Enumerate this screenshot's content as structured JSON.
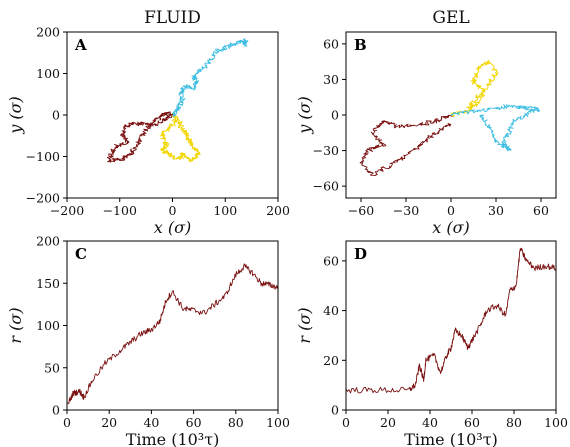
{
  "chart_data": [
    {
      "id": "A",
      "type": "line",
      "title": "FLUID",
      "panel_label": "A",
      "xlabel": "x (σ)",
      "ylabel": "y (σ)",
      "xlim": [
        -200,
        200
      ],
      "ylim": [
        -200,
        200
      ],
      "xticks": [
        -200,
        -100,
        0,
        100,
        200
      ],
      "yticks": [
        -200,
        -100,
        0,
        100,
        200
      ],
      "series": [
        {
          "color": "#7a1010",
          "points": [
            [
              0,
              0
            ],
            [
              -15,
              -10
            ],
            [
              -35,
              -25
            ],
            [
              -55,
              -22
            ],
            [
              -75,
              -20
            ],
            [
              -90,
              -30
            ],
            [
              -95,
              -50
            ],
            [
              -85,
              -65
            ],
            [
              -105,
              -75
            ],
            [
              -115,
              -90
            ],
            [
              -120,
              -110
            ],
            [
              -95,
              -105
            ],
            [
              -80,
              -95
            ],
            [
              -70,
              -75
            ],
            [
              -60,
              -55
            ],
            [
              -50,
              -35
            ],
            [
              -35,
              -15
            ],
            [
              -20,
              0
            ],
            [
              -5,
              5
            ]
          ]
        },
        {
          "color": "#f2d600",
          "points": [
            [
              0,
              0
            ],
            [
              5,
              -15
            ],
            [
              -5,
              -30
            ],
            [
              -20,
              -50
            ],
            [
              -10,
              -70
            ],
            [
              -20,
              -85
            ],
            [
              -5,
              -95
            ],
            [
              10,
              -105
            ],
            [
              20,
              -95
            ],
            [
              35,
              -110
            ],
            [
              50,
              -95
            ],
            [
              40,
              -75
            ],
            [
              30,
              -60
            ],
            [
              25,
              -45
            ],
            [
              15,
              -25
            ],
            [
              10,
              -5
            ]
          ]
        },
        {
          "color": "#3bbde2",
          "points": [
            [
              0,
              0
            ],
            [
              10,
              15
            ],
            [
              20,
              35
            ],
            [
              15,
              55
            ],
            [
              25,
              70
            ],
            [
              40,
              65
            ],
            [
              45,
              80
            ],
            [
              40,
              95
            ],
            [
              55,
              110
            ],
            [
              70,
              130
            ],
            [
              85,
              155
            ],
            [
              105,
              165
            ],
            [
              125,
              175
            ],
            [
              140,
              180
            ],
            [
              135,
              165
            ]
          ]
        }
      ]
    },
    {
      "id": "B",
      "type": "line",
      "title": "GEL",
      "panel_label": "B",
      "xlabel": "x (σ)",
      "ylabel": "y (σ)",
      "xlim": [
        -70,
        70
      ],
      "ylim": [
        -70,
        70
      ],
      "xticks": [
        -60,
        -30,
        0,
        30,
        60
      ],
      "yticks": [
        -60,
        -30,
        0,
        30,
        60
      ],
      "series": [
        {
          "color": "#7a1010",
          "points": [
            [
              0,
              0
            ],
            [
              -10,
              -5
            ],
            [
              -20,
              -8
            ],
            [
              -35,
              -10
            ],
            [
              -45,
              -5
            ],
            [
              -52,
              -15
            ],
            [
              -45,
              -25
            ],
            [
              -55,
              -30
            ],
            [
              -60,
              -40
            ],
            [
              -52,
              -50
            ],
            [
              -40,
              -42
            ],
            [
              -30,
              -35
            ],
            [
              -20,
              -25
            ],
            [
              -10,
              -15
            ],
            [
              0,
              -8
            ]
          ]
        },
        {
          "color": "#f2d600",
          "points": [
            [
              0,
              0
            ],
            [
              10,
              3
            ],
            [
              15,
              12
            ],
            [
              22,
              20
            ],
            [
              15,
              28
            ],
            [
              18,
              38
            ],
            [
              25,
              45
            ],
            [
              30,
              35
            ],
            [
              24,
              25
            ],
            [
              18,
              10
            ],
            [
              12,
              5
            ]
          ]
        },
        {
          "color": "#3bbde2",
          "points": [
            [
              0,
              0
            ],
            [
              15,
              3
            ],
            [
              28,
              5
            ],
            [
              38,
              8
            ],
            [
              48,
              6
            ],
            [
              58,
              5
            ],
            [
              50,
              0
            ],
            [
              42,
              -5
            ],
            [
              38,
              -15
            ],
            [
              35,
              -25
            ],
            [
              40,
              -30
            ],
            [
              30,
              -22
            ],
            [
              25,
              -10
            ],
            [
              20,
              0
            ]
          ]
        }
      ]
    },
    {
      "id": "C",
      "type": "line",
      "panel_label": "C",
      "xlabel": "Time (10³τ)",
      "ylabel": "r (σ)",
      "xlim": [
        0,
        100
      ],
      "ylim": [
        0,
        200
      ],
      "xticks": [
        0,
        20,
        40,
        60,
        80,
        100
      ],
      "yticks": [
        0,
        50,
        100,
        150,
        200
      ],
      "series": [
        {
          "color": "#7a1010",
          "points": [
            [
              0,
              5
            ],
            [
              3,
              20
            ],
            [
              6,
              22
            ],
            [
              8,
              15
            ],
            [
              12,
              35
            ],
            [
              18,
              55
            ],
            [
              25,
              70
            ],
            [
              30,
              80
            ],
            [
              35,
              90
            ],
            [
              40,
              95
            ],
            [
              44,
              105
            ],
            [
              47,
              130
            ],
            [
              50,
              140
            ],
            [
              55,
              120
            ],
            [
              60,
              118
            ],
            [
              65,
              115
            ],
            [
              70,
              125
            ],
            [
              75,
              135
            ],
            [
              80,
              160
            ],
            [
              84,
              170
            ],
            [
              88,
              162
            ],
            [
              92,
              150
            ],
            [
              96,
              148
            ],
            [
              100,
              145
            ]
          ]
        }
      ]
    },
    {
      "id": "D",
      "type": "line",
      "panel_label": "D",
      "xlabel": "Time (10³τ)",
      "ylabel": "r (σ)",
      "xlim": [
        0,
        100
      ],
      "ylim": [
        0,
        68
      ],
      "xticks": [
        0,
        20,
        40,
        60,
        80,
        100
      ],
      "yticks": [
        0,
        20,
        40,
        60
      ],
      "series": [
        {
          "color": "#7a1010",
          "points": [
            [
              0,
              8
            ],
            [
              10,
              8
            ],
            [
              20,
              8
            ],
            [
              30,
              8
            ],
            [
              33,
              10
            ],
            [
              35,
              18
            ],
            [
              37,
              12
            ],
            [
              38,
              20
            ],
            [
              42,
              22
            ],
            [
              45,
              15
            ],
            [
              48,
              22
            ],
            [
              50,
              25
            ],
            [
              52,
              32
            ],
            [
              55,
              30
            ],
            [
              58,
              25
            ],
            [
              60,
              28
            ],
            [
              64,
              34
            ],
            [
              67,
              40
            ],
            [
              72,
              42
            ],
            [
              76,
              38
            ],
            [
              78,
              48
            ],
            [
              81,
              50
            ],
            [
              83,
              65
            ],
            [
              86,
              60
            ],
            [
              90,
              57
            ],
            [
              95,
              58
            ],
            [
              100,
              57
            ]
          ]
        }
      ]
    }
  ]
}
